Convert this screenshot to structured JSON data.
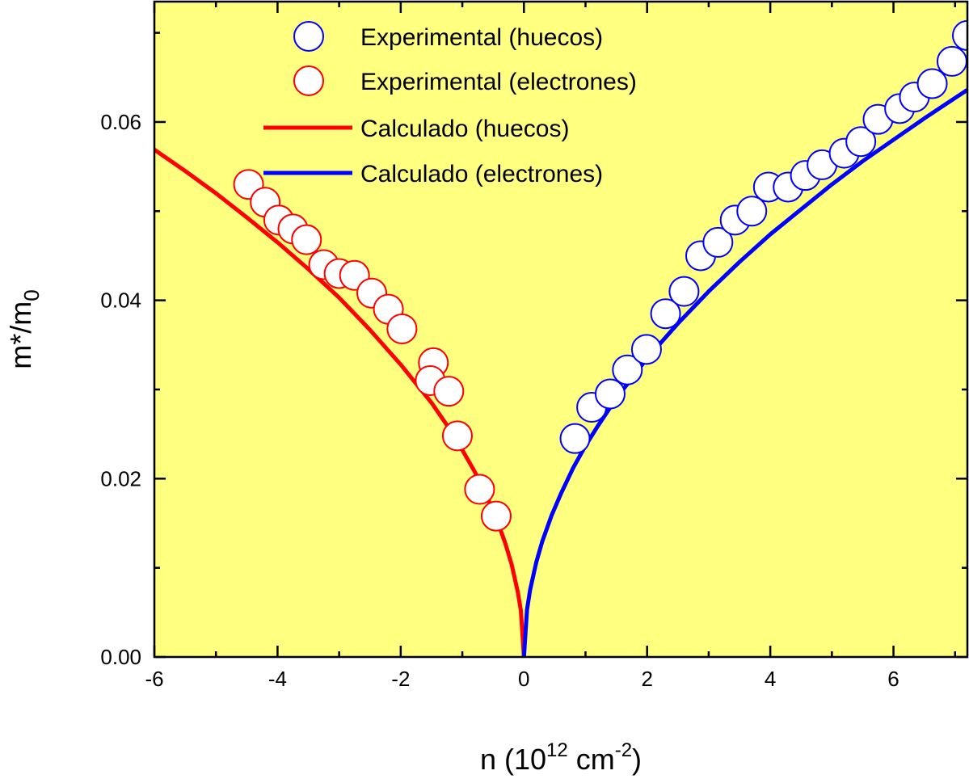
{
  "chart_data": {
    "type": "scatter",
    "title": "",
    "xlabel": "n (10^12 cm^-2)",
    "ylabel": "m*/m0",
    "xlabel_parts": {
      "pre": "n (10",
      "exp1": "12",
      "mid": " cm",
      "exp2": "-2",
      "post": ")"
    },
    "ylabel_parts": {
      "main": "m*/m",
      "sub": "0"
    },
    "xlim": [
      -6,
      7.2
    ],
    "ylim": [
      0,
      0.0735
    ],
    "x_ticks": [
      -6,
      -4,
      -2,
      0,
      2,
      4,
      6
    ],
    "x_tick_labels": [
      "-6",
      "-4",
      "-2",
      "0",
      "2",
      "4",
      "6"
    ],
    "y_ticks": [
      0,
      0.02,
      0.04,
      0.06
    ],
    "y_tick_labels": [
      "0.00",
      "0.02",
      "0.04",
      "0.06"
    ],
    "background_color": "#FFFF80",
    "legend_position": "top-center",
    "series": [
      {
        "name": "Experimental (huecos)",
        "kind": "markers",
        "color": "#0000FF",
        "x": [
          0.83,
          1.1,
          1.4,
          1.68,
          1.99,
          2.3,
          2.6,
          2.87,
          3.15,
          3.43,
          3.7,
          3.97,
          4.29,
          4.57,
          4.84,
          5.2,
          5.47,
          5.75,
          6.1,
          6.34,
          6.63,
          6.95,
          7.2
        ],
        "y": [
          0.0245,
          0.028,
          0.0295,
          0.0322,
          0.0345,
          0.0385,
          0.041,
          0.045,
          0.0465,
          0.049,
          0.05,
          0.0527,
          0.0527,
          0.054,
          0.0552,
          0.0565,
          0.0578,
          0.0603,
          0.0615,
          0.0628,
          0.0643,
          0.0668,
          0.0697
        ]
      },
      {
        "name": "Experimental (electrones)",
        "kind": "markers",
        "color": "#FF0000",
        "x": [
          -4.47,
          -4.2,
          -3.98,
          -3.75,
          -3.53,
          -3.25,
          -3.0,
          -2.75,
          -2.47,
          -2.2,
          -1.98,
          -1.47,
          -1.52,
          -1.22,
          -1.08,
          -0.72,
          -0.45
        ],
        "y": [
          0.053,
          0.051,
          0.049,
          0.048,
          0.0468,
          0.044,
          0.043,
          0.0428,
          0.0408,
          0.039,
          0.0368,
          0.033,
          0.031,
          0.0298,
          0.0248,
          0.0188,
          0.0158
        ]
      },
      {
        "name": "Calculado (huecos)",
        "kind": "line",
        "color": "#FF0000",
        "side": "negative",
        "x": [
          -6,
          -5.5,
          -5,
          -4.5,
          -4,
          -3.5,
          -3,
          -2.5,
          -2,
          -1.5,
          -1.2,
          -1,
          -0.8,
          -0.6,
          -0.45,
          -0.3,
          -0.2,
          -0.1,
          -0.05,
          0
        ],
        "y": [
          0.0569,
          0.0545,
          0.052,
          0.0493,
          0.0465,
          0.0435,
          0.0403,
          0.0367,
          0.0328,
          0.0285,
          0.0255,
          0.0232,
          0.0208,
          0.018,
          0.0156,
          0.0127,
          0.0104,
          0.0073,
          0.0052,
          0
        ]
      },
      {
        "name": "Calculado (electrones)",
        "kind": "line",
        "color": "#0000FF",
        "side": "positive",
        "x": [
          0,
          0.05,
          0.1,
          0.2,
          0.3,
          0.45,
          0.6,
          0.8,
          1,
          1.2,
          1.5,
          2,
          2.5,
          3,
          3.5,
          4,
          4.5,
          5,
          5.5,
          6,
          6.5,
          7,
          7.2
        ],
        "y": [
          0,
          0.0053,
          0.0075,
          0.0106,
          0.013,
          0.0159,
          0.0183,
          0.0212,
          0.0237,
          0.0259,
          0.029,
          0.0335,
          0.0374,
          0.041,
          0.0443,
          0.0474,
          0.0502,
          0.053,
          0.0556,
          0.058,
          0.0604,
          0.0627,
          0.0636
        ]
      }
    ],
    "legend": [
      {
        "label": "Experimental (huecos)",
        "kind": "marker",
        "color": "#0000FF"
      },
      {
        "label": "Experimental (electrones)",
        "kind": "marker",
        "color": "#FF0000"
      },
      {
        "label": "Calculado (huecos)",
        "kind": "line",
        "color": "#FF0000"
      },
      {
        "label": "Calculado (electrones)",
        "kind": "line",
        "color": "#0000FF"
      }
    ]
  }
}
